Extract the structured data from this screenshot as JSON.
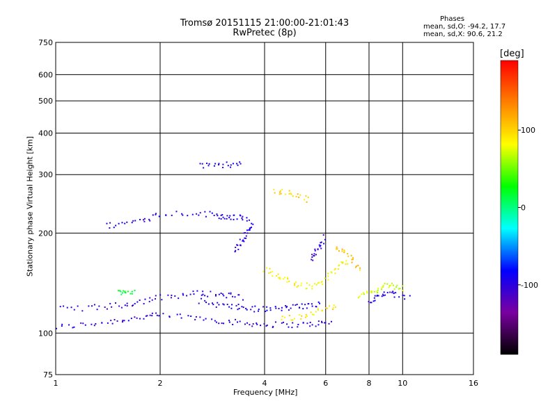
{
  "header": {
    "title_line1": "Tromsø 20151115 21:00:00-21:01:43",
    "title_line2": "RwPretec (8p)",
    "stats_title": "Phases",
    "stats_o": "mean, sd,O:  -94.2, 17.7",
    "stats_x": "mean, sd,X:  90.6, 21.2"
  },
  "colorbar": {
    "label": "[deg]",
    "ticks": [
      {
        "value": 100,
        "label": "100"
      },
      {
        "value": 0,
        "label": "0"
      },
      {
        "value": -100,
        "label": "-100"
      }
    ],
    "range": [
      -190,
      190
    ]
  },
  "chart_data": {
    "type": "scatter",
    "title": "Tromsø 20151115 21:00:00-21:01:43",
    "subtitle": "RwPretec (8p)",
    "xlabel": "Frequency [MHz]",
    "ylabel": "Stationary phase Virtual Height [km]",
    "xscale": "log",
    "yscale": "log",
    "xlim": [
      1,
      16
    ],
    "ylim": [
      75,
      750
    ],
    "xticks": [
      1,
      2,
      4,
      6,
      8,
      10,
      16
    ],
    "xtick_labels": [
      "1",
      "2",
      "4",
      "6",
      "8",
      "10",
      "16"
    ],
    "yticks": [
      75,
      100,
      200,
      300,
      400,
      500,
      600,
      750
    ],
    "ytick_labels": [
      "75",
      "100",
      "200",
      "300",
      "400",
      "500",
      "600",
      "750"
    ],
    "grid": true,
    "color_encoding": "phase [deg]",
    "colormap": [
      "#000000",
      "#7a00a0",
      "#0000ff",
      "#00ffff",
      "#00ff00",
      "#ffff00",
      "#ff8000",
      "#ff0000"
    ],
    "traces": [
      {
        "x": [
          1.0,
          1.2,
          1.4,
          1.6,
          1.8,
          2.0,
          2.4,
          2.8,
          3.2,
          3.6,
          4.0,
          4.6,
          5.2,
          5.8,
          6.2
        ],
        "y": [
          104,
          106,
          108,
          110,
          112,
          113,
          112,
          110,
          108,
          107,
          106,
          106,
          106,
          107,
          107
        ],
        "phase": -100
      },
      {
        "x": [
          1.0,
          1.2,
          1.4,
          1.6,
          1.8,
          2.0,
          2.3,
          2.6,
          2.9,
          3.2,
          3.5
        ],
        "y": [
          118,
          119,
          120,
          122,
          125,
          128,
          130,
          132,
          131,
          130,
          128
        ],
        "phase": -100
      },
      {
        "x": [
          2.6,
          2.9,
          3.2,
          3.5,
          3.8,
          4.2,
          4.6,
          5.0,
          5.4,
          5.8
        ],
        "y": [
          125,
          122,
          120,
          119,
          118,
          118,
          119,
          120,
          121,
          122
        ],
        "phase": -95
      },
      {
        "x": [
          1.5,
          1.6,
          1.7
        ],
        "y": [
          133,
          134,
          132
        ],
        "phase": 20
      },
      {
        "x": [
          1.4,
          1.6,
          1.8,
          2.0,
          2.4,
          2.8,
          3.0,
          3.2,
          3.4,
          3.6
        ],
        "y": [
          210,
          214,
          220,
          228,
          230,
          228,
          225,
          224,
          222,
          220
        ],
        "phase": -95
      },
      {
        "x": [
          3.3,
          3.4,
          3.5,
          3.6,
          3.7
        ],
        "y": [
          175,
          185,
          195,
          205,
          215
        ],
        "phase": -100
      },
      {
        "x": [
          2.6,
          2.9,
          3.2,
          3.5
        ],
        "y": [
          320,
          318,
          322,
          324
        ],
        "phase": -95
      },
      {
        "x": [
          4.0,
          4.3,
          4.6,
          5.0,
          5.4,
          5.8,
          6.2,
          6.6,
          7.0
        ],
        "y": [
          155,
          150,
          145,
          140,
          138,
          142,
          150,
          160,
          165
        ],
        "phase": 85
      },
      {
        "x": [
          4.3,
          4.6,
          5.0,
          5.4
        ],
        "y": [
          270,
          265,
          260,
          250
        ],
        "phase": 100
      },
      {
        "x": [
          5.4,
          5.6,
          5.8,
          6.0
        ],
        "y": [
          165,
          175,
          185,
          195
        ],
        "phase": -105
      },
      {
        "x": [
          6.4,
          6.8,
          7.2,
          7.6
        ],
        "y": [
          180,
          175,
          165,
          155
        ],
        "phase": 105
      },
      {
        "x": [
          7.5,
          8.0,
          8.5,
          9.0,
          9.5,
          10.0
        ],
        "y": [
          130,
          132,
          135,
          140,
          138,
          136
        ],
        "phase": 70
      },
      {
        "x": [
          8.0,
          8.5,
          9.0,
          9.5,
          10.5
        ],
        "y": [
          125,
          128,
          132,
          130,
          128
        ],
        "phase": -95
      },
      {
        "x": [
          4.5,
          5.0,
          5.5,
          6.0,
          6.5
        ],
        "y": [
          110,
          112,
          115,
          118,
          120
        ],
        "phase": 90
      }
    ]
  },
  "text": {
    "y_axis_title": "Stationary phase Virtual Height [km]",
    "x_axis_title": "Frequency [MHz]"
  }
}
